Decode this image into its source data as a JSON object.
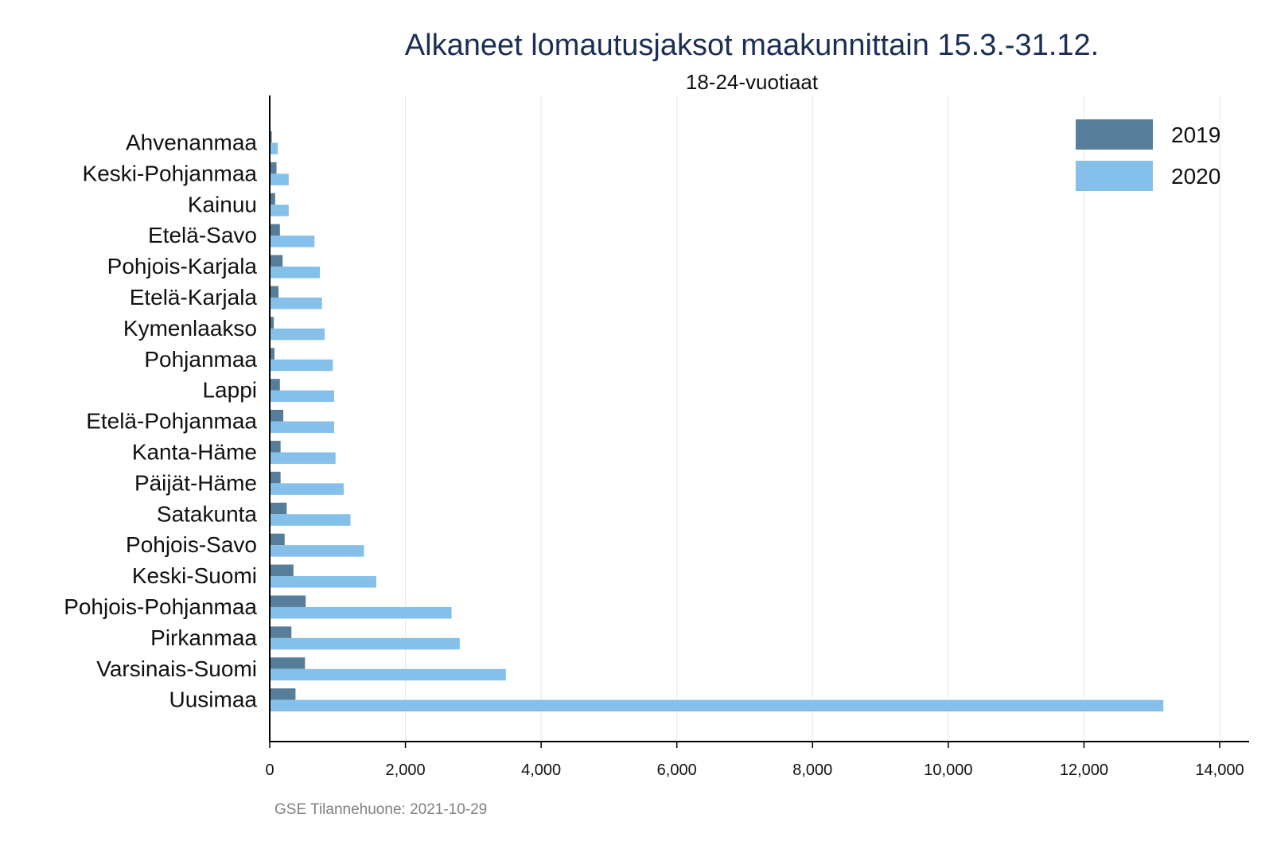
{
  "chart_data": {
    "type": "bar",
    "orientation": "horizontal",
    "title": "Alkaneet lomautusjaksot maakunnittain 15.3.-31.12.",
    "subtitle": "18-24-vuotiaat",
    "categories": [
      "Ahvenanmaa",
      "Keski-Pohjanmaa",
      "Kainuu",
      "Etelä-Savo",
      "Pohjois-Karjala",
      "Etelä-Karjala",
      "Kymenlaakso",
      "Pohjanmaa",
      "Lappi",
      "Etelä-Pohjanmaa",
      "Kanta-Häme",
      "Päijät-Häme",
      "Satakunta",
      "Pohjois-Savo",
      "Keski-Suomi",
      "Pohjois-Pohjanmaa",
      "Pirkanmaa",
      "Varsinais-Suomi",
      "Uusimaa"
    ],
    "series": [
      {
        "name": "2019",
        "color": "#567d99",
        "values": [
          30,
          100,
          80,
          150,
          190,
          130,
          60,
          70,
          150,
          200,
          160,
          160,
          250,
          220,
          350,
          530,
          320,
          520,
          380
        ]
      },
      {
        "name": "2020",
        "color": "#84c0ea",
        "values": [
          120,
          280,
          280,
          660,
          740,
          770,
          810,
          930,
          950,
          950,
          970,
          1090,
          1190,
          1390,
          1570,
          2680,
          2800,
          3480,
          13170
        ]
      }
    ],
    "xlim": [
      0,
      14000
    ],
    "xticks": [
      0,
      2000,
      4000,
      6000,
      8000,
      10000,
      12000,
      14000
    ],
    "xtick_labels": [
      "0",
      "2,000",
      "4,000",
      "6,000",
      "8,000",
      "10,000",
      "12,000",
      "14,000"
    ],
    "grid": "vertical",
    "legend": "top-right"
  },
  "footer": {
    "source": "GSE Tilannehuone: 2021-10-29"
  }
}
